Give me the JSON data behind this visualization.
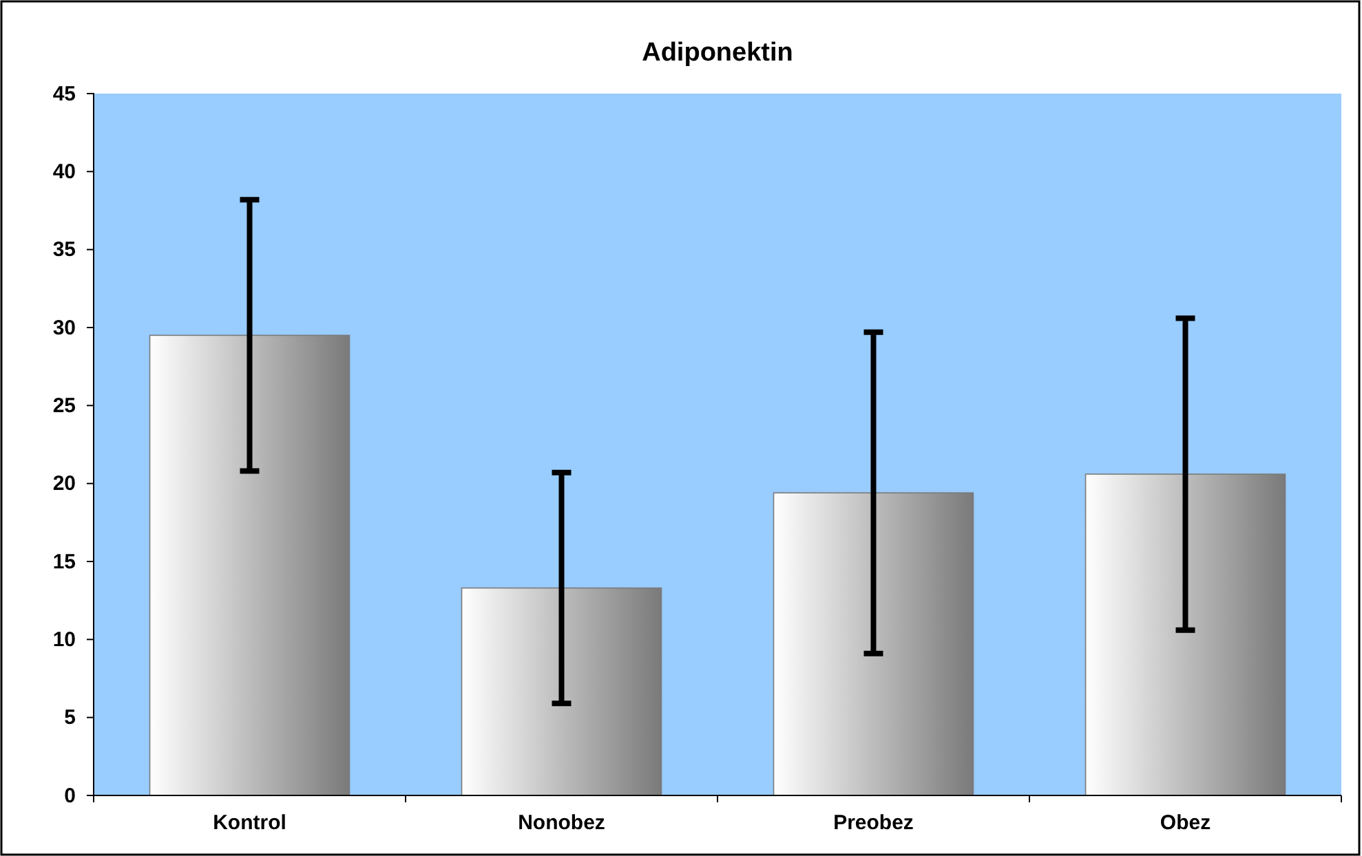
{
  "chart_data": {
    "type": "bar",
    "title": "Adiponektin",
    "categories": [
      "Kontrol",
      "Nonobez",
      "Preobez",
      "Obez"
    ],
    "values": [
      29.5,
      13.3,
      19.4,
      20.6
    ],
    "errors": [
      8.7,
      7.4,
      10.3,
      10.0
    ],
    "color": "#7a7a7a",
    "ylim": [
      0,
      45
    ],
    "yticks": [
      0,
      5,
      10,
      15,
      20,
      25,
      30,
      35,
      40,
      45
    ],
    "grid": false
  }
}
